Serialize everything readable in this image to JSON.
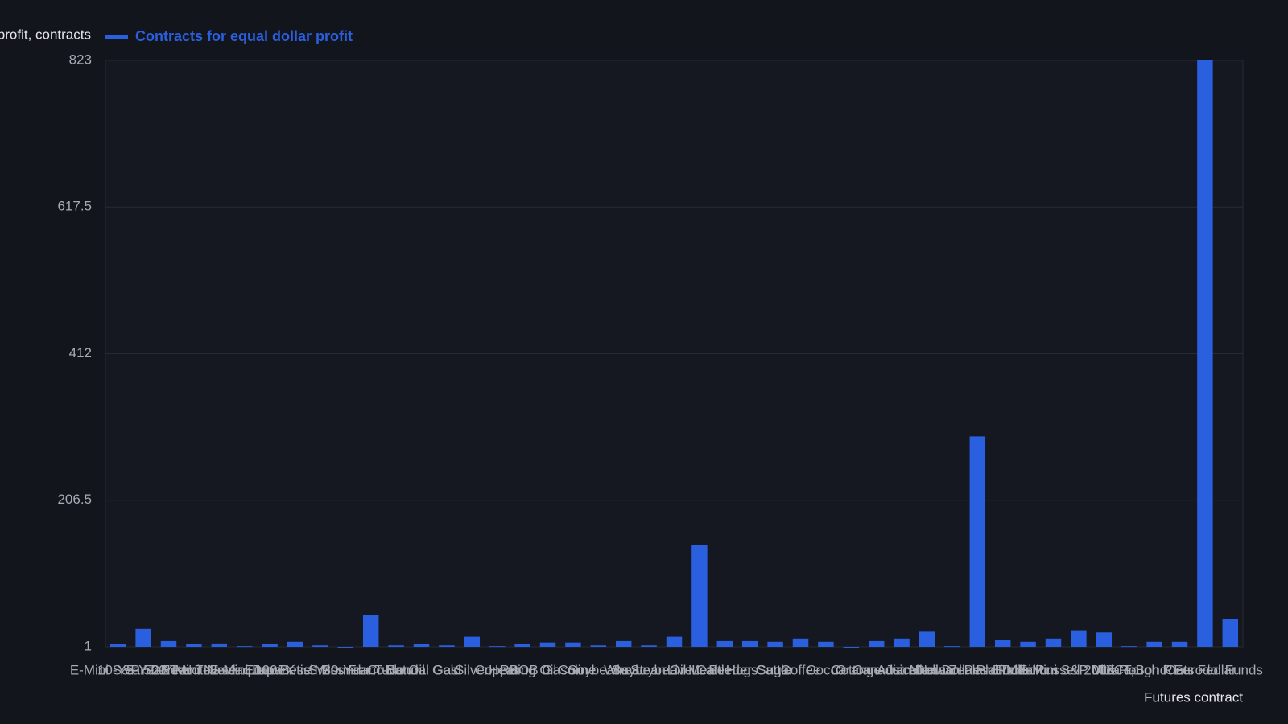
{
  "chart_data": {
    "type": "bar",
    "y_label": "Contracts for equal dollar profit, contracts",
    "x_label": "Futures contract",
    "legend": "top-left",
    "grid": true,
    "categories": [
      "E-Mini S&P 500",
      "10-Year T-Note",
      "5-Year T-Note",
      "2-Year T-Note",
      "E-Mini Nasdaq 100",
      "E-Mini Dow",
      "Euro FX",
      "Japanese Yen",
      "British Pound",
      "Swiss Franc",
      "30-Year T-Bond",
      "Crude Oil",
      "Natural Gas",
      "Gold",
      "Silver",
      "Copper",
      "Heating Oil",
      "RBOB Gasoline",
      "Corn",
      "Soybeans",
      "Wheat",
      "Soybean Oil",
      "Soybean Meal",
      "Live Cattle",
      "Lean Hogs",
      "Feeder Cattle",
      "Sugar",
      "Coffee",
      "Cocoa",
      "Cotton",
      "Orange Juice",
      "Canadian Dollar",
      "Australian Dollar",
      "Mexican Peso",
      "New Zealand Dollar",
      "Platinum",
      "Palladium",
      "E-Mini Russell 2000",
      "E-Mini S&P MidCap",
      "VIX",
      "Ultra T-Bond",
      "Rough Rice",
      "Oats",
      "Eurodollar",
      "Fed Funds"
    ],
    "series": [
      {
        "name": "Contracts for equal dollar profit",
        "color": "#2a5fe0",
        "values": [
          4.5,
          26,
          9,
          4.5,
          5.6,
          2,
          4.5,
          8,
          3,
          0,
          45,
          3,
          4.5,
          3,
          15,
          2,
          4.5,
          7,
          7,
          3,
          9,
          3,
          15,
          144,
          9,
          9,
          8,
          12.5,
          8,
          0,
          9,
          12.5,
          22,
          2,
          296,
          10,
          8,
          12.5,
          24,
          21,
          2,
          8,
          8,
          823,
          40
        ]
      }
    ],
    "ylim": [
      1,
      823
    ],
    "yticks": [
      1,
      206.5,
      412,
      617.5,
      823
    ]
  }
}
